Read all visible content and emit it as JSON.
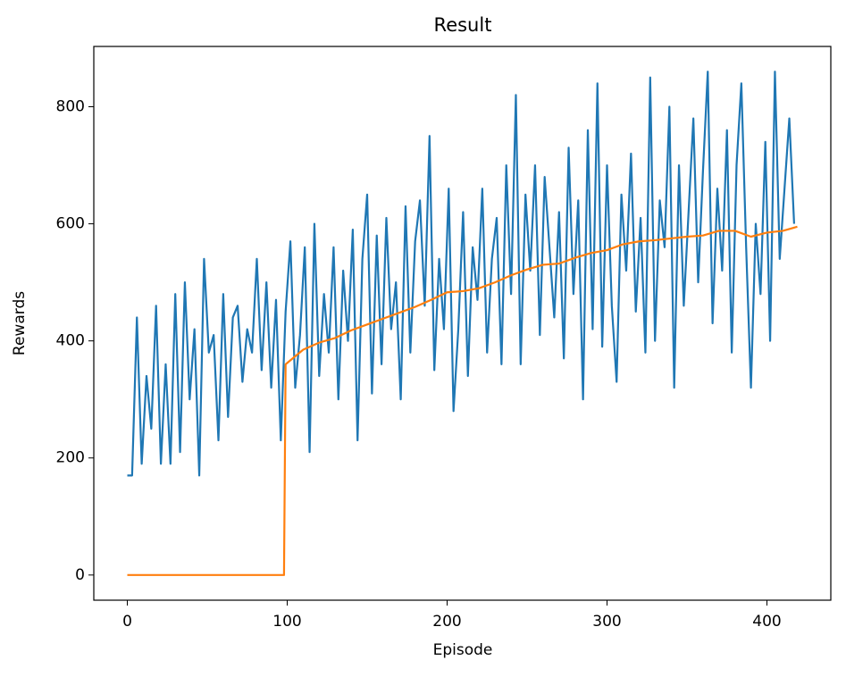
{
  "chart_data": {
    "type": "line",
    "title": "Result",
    "x_label": "Episode",
    "y_label": "Rewards",
    "xlim": [
      -20.95,
      439.95
    ],
    "ylim": [
      -43,
      903
    ],
    "xticks": [
      0,
      100,
      200,
      300,
      400
    ],
    "yticks": [
      0,
      200,
      400,
      600,
      800
    ],
    "grid": false,
    "series": [
      {
        "color": "#1f77b4",
        "x": [
          0,
          3,
          6,
          9,
          12,
          15,
          18,
          21,
          24,
          27,
          30,
          33,
          36,
          39,
          42,
          45,
          48,
          51,
          54,
          57,
          60,
          63,
          66,
          69,
          72,
          75,
          78,
          81,
          84,
          87,
          90,
          93,
          96,
          99,
          102,
          105,
          108,
          111,
          114,
          117,
          120,
          123,
          126,
          129,
          132,
          135,
          138,
          141,
          144,
          147,
          150,
          153,
          156,
          159,
          162,
          165,
          168,
          171,
          174,
          177,
          180,
          183,
          186,
          189,
          192,
          195,
          198,
          201,
          204,
          207,
          210,
          213,
          216,
          219,
          222,
          225,
          228,
          231,
          234,
          237,
          240,
          243,
          246,
          249,
          252,
          255,
          258,
          261,
          264,
          267,
          270,
          273,
          276,
          279,
          282,
          285,
          288,
          291,
          294,
          297,
          300,
          303,
          306,
          309,
          312,
          315,
          318,
          321,
          324,
          327,
          330,
          333,
          336,
          339,
          342,
          345,
          348,
          351,
          354,
          357,
          360,
          363,
          366,
          369,
          372,
          375,
          378,
          381,
          384,
          387,
          390,
          393,
          396,
          399,
          402,
          405,
          408,
          411,
          414,
          417
        ],
        "values": [
          170,
          170,
          440,
          190,
          340,
          250,
          460,
          190,
          360,
          190,
          480,
          210,
          500,
          300,
          420,
          170,
          540,
          380,
          410,
          230,
          480,
          270,
          440,
          460,
          330,
          420,
          380,
          540,
          350,
          500,
          320,
          470,
          230,
          450,
          570,
          320,
          410,
          560,
          210,
          600,
          340,
          480,
          380,
          560,
          300,
          520,
          400,
          590,
          230,
          540,
          650,
          310,
          580,
          360,
          610,
          420,
          500,
          300,
          630,
          380,
          570,
          640,
          460,
          750,
          350,
          540,
          420,
          660,
          280,
          420,
          620,
          340,
          560,
          470,
          660,
          380,
          540,
          610,
          360,
          700,
          480,
          820,
          360,
          650,
          520,
          700,
          410,
          680,
          560,
          440,
          620,
          370,
          730,
          480,
          640,
          300,
          760,
          420,
          840,
          390,
          700,
          460,
          330,
          650,
          520,
          720,
          450,
          610,
          380,
          850,
          400,
          640,
          560,
          800,
          320,
          700,
          460,
          620,
          780,
          500,
          690,
          860,
          430,
          660,
          520,
          760,
          380,
          700,
          840,
          560,
          320,
          600,
          480,
          740,
          400,
          860,
          540,
          660,
          780,
          600
        ]
      },
      {
        "color": "#ff7f0e",
        "x": [
          0,
          98,
          99,
          110,
          120,
          130,
          140,
          150,
          160,
          170,
          180,
          190,
          200,
          210,
          220,
          230,
          240,
          250,
          260,
          270,
          280,
          290,
          300,
          310,
          320,
          330,
          340,
          350,
          360,
          370,
          380,
          390,
          400,
          410,
          419
        ],
        "values": [
          0,
          0,
          360,
          385,
          397,
          405,
          418,
          428,
          438,
          448,
          458,
          470,
          483,
          485,
          490,
          500,
          512,
          522,
          530,
          532,
          542,
          550,
          555,
          565,
          570,
          572,
          575,
          578,
          580,
          588,
          588,
          578,
          585,
          588,
          595
        ]
      }
    ]
  }
}
